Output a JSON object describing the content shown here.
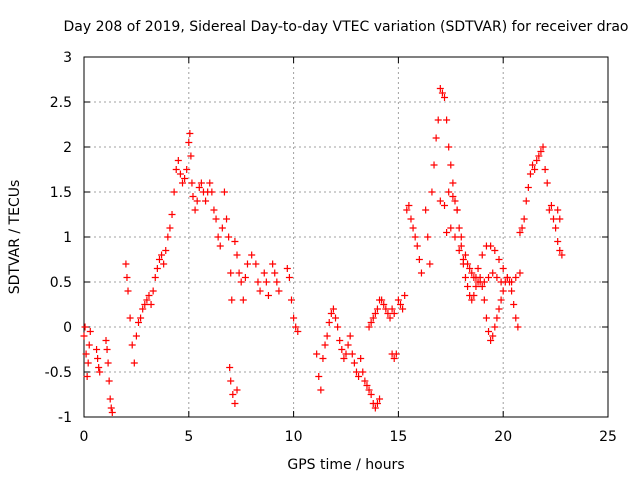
{
  "chart_data": {
    "type": "scatter",
    "title": "Day 208 of 2019, Sidereal Day-to-day VTEC variation (SDTVAR) for receiver drao",
    "xlabel": "GPS time / hours",
    "ylabel": "SDTVAR / TECUs",
    "xlim": [
      0,
      25
    ],
    "ylim": [
      -1,
      3
    ],
    "xticks": [
      0,
      5,
      10,
      15,
      20,
      25
    ],
    "yticks": [
      -1,
      -0.5,
      0,
      0.5,
      1,
      1.5,
      2,
      2.5,
      3
    ],
    "xtick_labels": [
      "0",
      "5",
      "10",
      "15",
      "20",
      "25"
    ],
    "ytick_labels": [
      "-1",
      "-0.5",
      "0",
      "0.5",
      "1",
      "1.5",
      "2",
      "2.5",
      "3"
    ],
    "grid": true,
    "marker": "+",
    "color": "#ff0000",
    "series": [
      {
        "name": "SDTVAR",
        "points": [
          [
            0.0,
            -0.1
          ],
          [
            0.05,
            0.0
          ],
          [
            0.1,
            -0.3
          ],
          [
            0.15,
            -0.55
          ],
          [
            0.2,
            -0.4
          ],
          [
            0.25,
            -0.2
          ],
          [
            0.3,
            -0.05
          ],
          [
            0.6,
            -0.25
          ],
          [
            0.65,
            -0.35
          ],
          [
            0.7,
            -0.45
          ],
          [
            0.75,
            -0.5
          ],
          [
            1.05,
            -0.15
          ],
          [
            1.1,
            -0.25
          ],
          [
            1.15,
            -0.4
          ],
          [
            1.2,
            -0.6
          ],
          [
            1.25,
            -0.8
          ],
          [
            1.3,
            -0.9
          ],
          [
            1.35,
            -0.95
          ],
          [
            2.0,
            0.7
          ],
          [
            2.05,
            0.55
          ],
          [
            2.1,
            0.4
          ],
          [
            2.2,
            0.1
          ],
          [
            2.3,
            -0.2
          ],
          [
            2.4,
            -0.4
          ],
          [
            2.5,
            -0.1
          ],
          [
            2.6,
            0.05
          ],
          [
            2.7,
            0.1
          ],
          [
            2.8,
            0.2
          ],
          [
            2.9,
            0.25
          ],
          [
            3.0,
            0.3
          ],
          [
            3.1,
            0.35
          ],
          [
            3.2,
            0.25
          ],
          [
            3.3,
            0.4
          ],
          [
            3.4,
            0.55
          ],
          [
            3.5,
            0.65
          ],
          [
            3.6,
            0.75
          ],
          [
            3.7,
            0.8
          ],
          [
            3.8,
            0.7
          ],
          [
            3.9,
            0.85
          ],
          [
            4.0,
            1.0
          ],
          [
            4.1,
            1.1
          ],
          [
            4.2,
            1.25
          ],
          [
            4.3,
            1.5
          ],
          [
            4.4,
            1.75
          ],
          [
            4.5,
            1.85
          ],
          [
            4.6,
            1.7
          ],
          [
            4.7,
            1.6
          ],
          [
            4.8,
            1.65
          ],
          [
            4.9,
            1.75
          ],
          [
            5.0,
            2.05
          ],
          [
            5.05,
            2.15
          ],
          [
            5.1,
            1.9
          ],
          [
            5.15,
            1.6
          ],
          [
            5.2,
            1.45
          ],
          [
            5.3,
            1.3
          ],
          [
            5.4,
            1.4
          ],
          [
            5.5,
            1.55
          ],
          [
            5.6,
            1.6
          ],
          [
            5.7,
            1.5
          ],
          [
            5.8,
            1.4
          ],
          [
            5.9,
            1.5
          ],
          [
            6.0,
            1.6
          ],
          [
            6.1,
            1.5
          ],
          [
            6.2,
            1.3
          ],
          [
            6.3,
            1.2
          ],
          [
            6.4,
            1.0
          ],
          [
            6.5,
            0.9
          ],
          [
            6.6,
            1.1
          ],
          [
            6.7,
            1.5
          ],
          [
            6.8,
            1.2
          ],
          [
            6.9,
            1.0
          ],
          [
            7.0,
            0.6
          ],
          [
            7.05,
            0.3
          ],
          [
            6.95,
            -0.45
          ],
          [
            7.0,
            -0.6
          ],
          [
            7.1,
            -0.75
          ],
          [
            7.2,
            -0.85
          ],
          [
            7.3,
            -0.7
          ],
          [
            7.2,
            0.95
          ],
          [
            7.3,
            0.8
          ],
          [
            7.4,
            0.6
          ],
          [
            7.5,
            0.5
          ],
          [
            7.6,
            0.3
          ],
          [
            7.7,
            0.55
          ],
          [
            7.8,
            0.7
          ],
          [
            8.0,
            0.8
          ],
          [
            8.2,
            0.7
          ],
          [
            8.3,
            0.5
          ],
          [
            8.4,
            0.4
          ],
          [
            8.6,
            0.6
          ],
          [
            8.7,
            0.5
          ],
          [
            8.8,
            0.35
          ],
          [
            9.0,
            0.7
          ],
          [
            9.1,
            0.6
          ],
          [
            9.2,
            0.5
          ],
          [
            9.3,
            0.4
          ],
          [
            9.7,
            0.65
          ],
          [
            9.8,
            0.55
          ],
          [
            9.9,
            0.3
          ],
          [
            10.0,
            0.1
          ],
          [
            10.1,
            0.0
          ],
          [
            10.2,
            -0.05
          ],
          [
            11.1,
            -0.3
          ],
          [
            11.2,
            -0.55
          ],
          [
            11.3,
            -0.7
          ],
          [
            11.4,
            -0.35
          ],
          [
            11.5,
            -0.2
          ],
          [
            11.6,
            -0.1
          ],
          [
            11.7,
            0.05
          ],
          [
            11.8,
            0.15
          ],
          [
            11.9,
            0.2
          ],
          [
            12.0,
            0.1
          ],
          [
            12.1,
            0.0
          ],
          [
            12.2,
            -0.15
          ],
          [
            12.3,
            -0.25
          ],
          [
            12.4,
            -0.35
          ],
          [
            12.5,
            -0.3
          ],
          [
            12.6,
            -0.2
          ],
          [
            12.7,
            -0.1
          ],
          [
            12.8,
            -0.3
          ],
          [
            12.9,
            -0.4
          ],
          [
            13.0,
            -0.5
          ],
          [
            13.1,
            -0.55
          ],
          [
            13.2,
            -0.35
          ],
          [
            13.3,
            -0.5
          ],
          [
            13.4,
            -0.6
          ],
          [
            13.5,
            -0.65
          ],
          [
            13.6,
            -0.7
          ],
          [
            13.7,
            -0.75
          ],
          [
            13.8,
            -0.85
          ],
          [
            13.9,
            -0.9
          ],
          [
            14.0,
            -0.85
          ],
          [
            14.1,
            -0.8
          ],
          [
            13.6,
            0.0
          ],
          [
            13.7,
            0.05
          ],
          [
            13.8,
            0.1
          ],
          [
            13.9,
            0.15
          ],
          [
            14.0,
            0.2
          ],
          [
            14.1,
            0.3
          ],
          [
            14.2,
            0.3
          ],
          [
            14.3,
            0.25
          ],
          [
            14.4,
            0.2
          ],
          [
            14.5,
            0.15
          ],
          [
            14.6,
            0.1
          ],
          [
            14.7,
            -0.3
          ],
          [
            14.8,
            -0.35
          ],
          [
            14.9,
            -0.3
          ],
          [
            14.7,
            0.2
          ],
          [
            14.8,
            0.15
          ],
          [
            15.0,
            0.3
          ],
          [
            15.1,
            0.25
          ],
          [
            15.2,
            0.2
          ],
          [
            15.3,
            0.35
          ],
          [
            15.4,
            1.3
          ],
          [
            15.5,
            1.35
          ],
          [
            15.6,
            1.2
          ],
          [
            15.7,
            1.1
          ],
          [
            15.8,
            1.0
          ],
          [
            15.9,
            0.9
          ],
          [
            16.0,
            0.75
          ],
          [
            16.1,
            0.6
          ],
          [
            16.3,
            1.3
          ],
          [
            16.4,
            1.0
          ],
          [
            16.5,
            0.7
          ],
          [
            16.6,
            1.5
          ],
          [
            16.7,
            1.8
          ],
          [
            16.8,
            2.1
          ],
          [
            16.9,
            2.3
          ],
          [
            17.0,
            2.65
          ],
          [
            17.1,
            2.6
          ],
          [
            17.2,
            2.55
          ],
          [
            17.3,
            2.3
          ],
          [
            17.4,
            2.0
          ],
          [
            17.5,
            1.8
          ],
          [
            17.6,
            1.6
          ],
          [
            17.7,
            1.4
          ],
          [
            17.8,
            1.3
          ],
          [
            17.9,
            1.1
          ],
          [
            18.0,
            0.9
          ],
          [
            18.1,
            0.7
          ],
          [
            18.2,
            0.55
          ],
          [
            18.3,
            0.45
          ],
          [
            18.4,
            0.35
          ],
          [
            18.5,
            0.3
          ],
          [
            18.6,
            0.35
          ],
          [
            18.7,
            0.45
          ],
          [
            18.8,
            0.5
          ],
          [
            18.9,
            0.55
          ],
          [
            19.0,
            0.45
          ],
          [
            19.1,
            0.3
          ],
          [
            19.2,
            0.1
          ],
          [
            19.3,
            -0.05
          ],
          [
            19.4,
            -0.15
          ],
          [
            19.5,
            -0.1
          ],
          [
            19.6,
            0.0
          ],
          [
            19.7,
            0.1
          ],
          [
            19.8,
            0.2
          ],
          [
            19.9,
            0.3
          ],
          [
            20.0,
            0.4
          ],
          [
            20.1,
            0.5
          ],
          [
            20.2,
            0.55
          ],
          [
            20.3,
            0.5
          ],
          [
            20.4,
            0.4
          ],
          [
            20.5,
            0.25
          ],
          [
            20.6,
            0.1
          ],
          [
            20.7,
            0.0
          ],
          [
            17.0,
            1.4
          ],
          [
            17.2,
            1.35
          ],
          [
            17.4,
            1.5
          ],
          [
            17.6,
            1.45
          ],
          [
            17.8,
            1.3
          ],
          [
            18.0,
            1.0
          ],
          [
            18.2,
            0.8
          ],
          [
            18.4,
            0.65
          ],
          [
            18.6,
            0.55
          ],
          [
            18.8,
            0.65
          ],
          [
            19.0,
            0.8
          ],
          [
            19.2,
            0.9
          ],
          [
            19.4,
            0.9
          ],
          [
            19.6,
            0.85
          ],
          [
            19.8,
            0.75
          ],
          [
            20.0,
            0.65
          ],
          [
            20.2,
            0.55
          ],
          [
            20.4,
            0.5
          ],
          [
            20.6,
            0.55
          ],
          [
            20.8,
            0.6
          ],
          [
            17.3,
            1.05
          ],
          [
            17.5,
            1.1
          ],
          [
            17.7,
            1.0
          ],
          [
            17.9,
            0.85
          ],
          [
            18.1,
            0.75
          ],
          [
            18.3,
            0.7
          ],
          [
            18.5,
            0.6
          ],
          [
            18.7,
            0.55
          ],
          [
            18.9,
            0.5
          ],
          [
            19.1,
            0.5
          ],
          [
            19.3,
            0.55
          ],
          [
            19.5,
            0.6
          ],
          [
            19.7,
            0.55
          ],
          [
            19.9,
            0.5
          ],
          [
            20.8,
            1.05
          ],
          [
            20.9,
            1.1
          ],
          [
            21.0,
            1.2
          ],
          [
            21.1,
            1.4
          ],
          [
            21.2,
            1.55
          ],
          [
            21.3,
            1.7
          ],
          [
            21.4,
            1.8
          ],
          [
            21.5,
            1.75
          ],
          [
            21.6,
            1.85
          ],
          [
            21.7,
            1.9
          ],
          [
            21.8,
            1.95
          ],
          [
            21.9,
            2.0
          ],
          [
            22.0,
            1.75
          ],
          [
            22.1,
            1.6
          ],
          [
            22.2,
            1.3
          ],
          [
            22.3,
            1.35
          ],
          [
            22.4,
            1.2
          ],
          [
            22.5,
            1.1
          ],
          [
            22.6,
            0.95
          ],
          [
            22.7,
            0.85
          ],
          [
            22.8,
            0.8
          ],
          [
            22.6,
            1.3
          ],
          [
            22.7,
            1.2
          ]
        ]
      }
    ]
  }
}
